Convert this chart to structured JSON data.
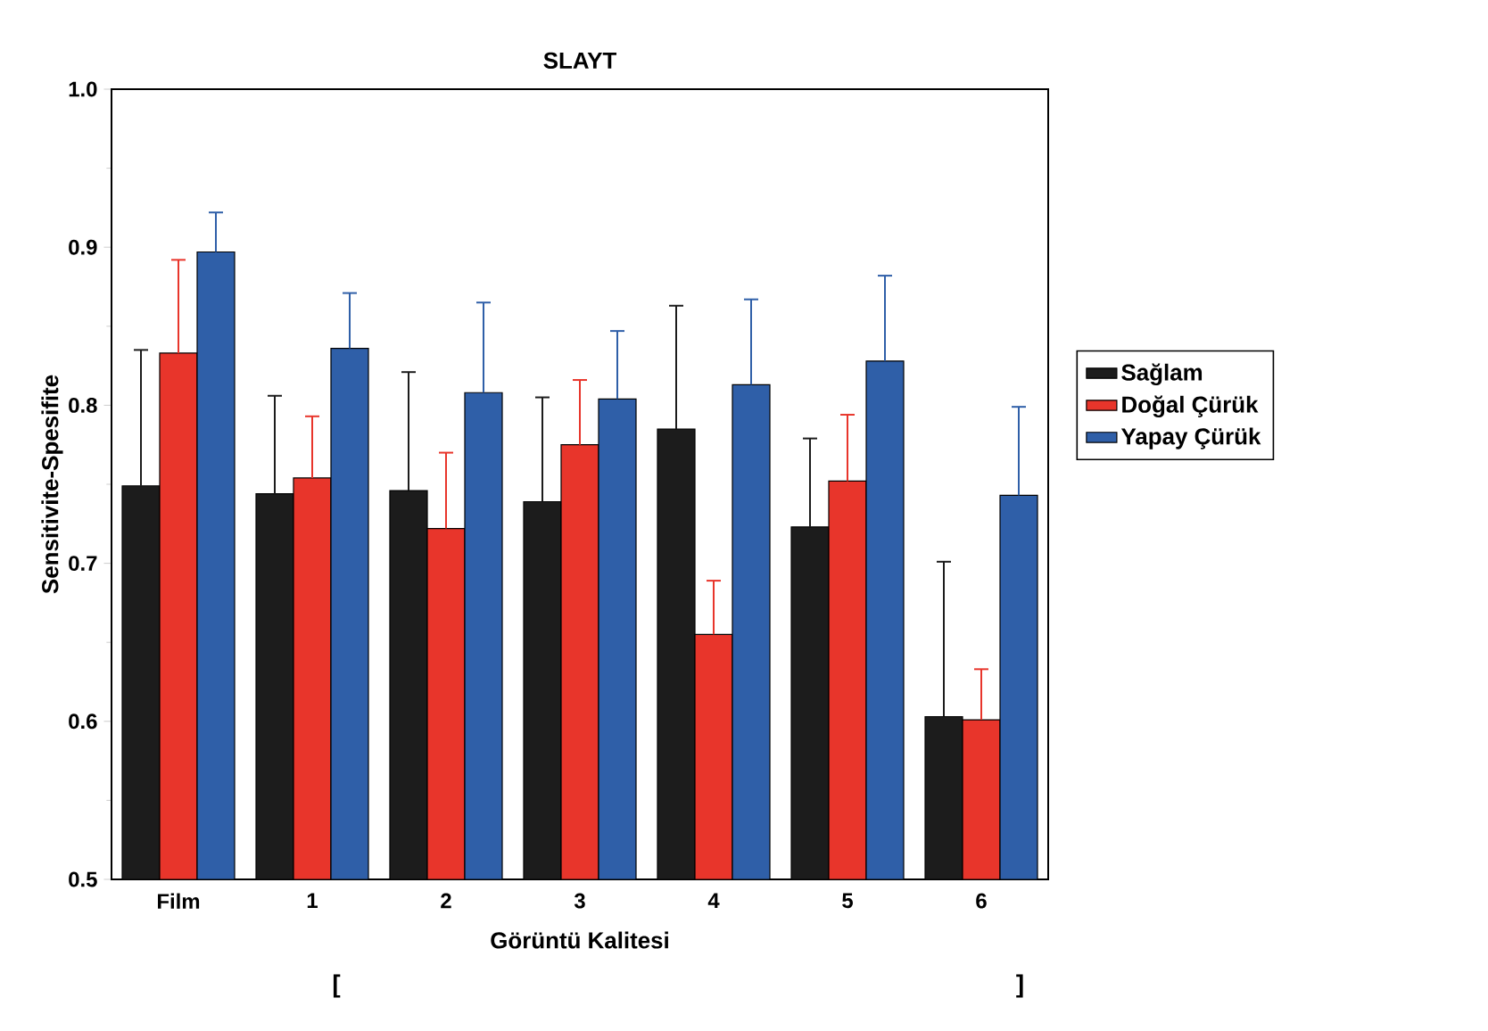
{
  "chart_data": {
    "type": "bar",
    "title": "SLAYT",
    "xlabel": "Görüntü Kalitesi",
    "ylabel": "Sensitivite-Spesifite",
    "categories": [
      "Film",
      "1",
      "2",
      "3",
      "4",
      "5",
      "6"
    ],
    "series": [
      {
        "name": "Sağlam",
        "color": "#1c1c1c",
        "values": [
          0.749,
          0.744,
          0.746,
          0.739,
          0.785,
          0.723,
          0.603
        ],
        "errors": [
          [
            0.749,
            0.835
          ],
          [
            0.744,
            0.806
          ],
          [
            0.746,
            0.821
          ],
          [
            0.739,
            0.805
          ],
          [
            0.785,
            0.863
          ],
          [
            0.723,
            0.779
          ],
          [
            0.603,
            0.701
          ]
        ]
      },
      {
        "name": "Doğal Çürük",
        "color": "#e8352b",
        "values": [
          0.833,
          0.754,
          0.722,
          0.775,
          0.655,
          0.752,
          0.601
        ],
        "errors": [
          [
            0.833,
            0.892
          ],
          [
            0.754,
            0.793
          ],
          [
            0.722,
            0.77
          ],
          [
            0.775,
            0.816
          ],
          [
            0.655,
            0.689
          ],
          [
            0.752,
            0.794
          ],
          [
            0.601,
            0.633
          ]
        ]
      },
      {
        "name": "Yapay Çürük",
        "color": "#2f5fa8",
        "values": [
          0.897,
          0.836,
          0.808,
          0.804,
          0.813,
          0.828,
          0.743
        ],
        "errors": [
          [
            0.897,
            0.922
          ],
          [
            0.836,
            0.871
          ],
          [
            0.808,
            0.865
          ],
          [
            0.804,
            0.847
          ],
          [
            0.813,
            0.867
          ],
          [
            0.828,
            0.882
          ],
          [
            0.743,
            0.799
          ]
        ]
      }
    ],
    "ylim": [
      0.5,
      1.0
    ],
    "yticks": [
      0.5,
      0.6,
      0.7,
      0.8,
      0.9,
      {
        "value": 1.0,
        "label": "1.0"
      }
    ],
    "legend": "right",
    "grid": false,
    "annotations": [
      "[",
      "]"
    ]
  }
}
